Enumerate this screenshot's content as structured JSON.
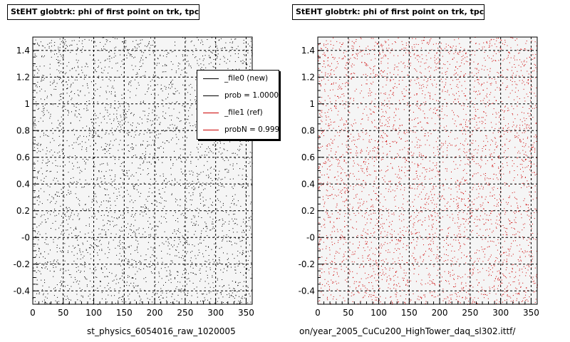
{
  "panels": [
    {
      "title": "StEHT globtrk: phi of first point on trk, tpc",
      "file_label": "st_physics_6054016_raw_1020005",
      "color": "#000000"
    },
    {
      "title": "StEHT globtrk: phi of first point on trk, tpc",
      "file_label": "on/year_2005_CuCu200_HighTower_daq_sl302.ittf/",
      "color": "#cc0000"
    }
  ],
  "legend": {
    "entries": [
      {
        "label": "_file0 (new)",
        "color": "#000000"
      },
      {
        "label": "prob = 1.000000",
        "color": "#000000"
      },
      {
        "label": "_file1 (ref)",
        "color": "#cc0000"
      },
      {
        "label": "probN = 0.999992",
        "color": "#cc0000"
      }
    ]
  },
  "chart_data": [
    {
      "type": "scatter",
      "title": "StEHT globtrk: phi of first point on trk, tpc",
      "xlabel": "st_physics_6054016_raw_1020005",
      "xlim": [
        0,
        360
      ],
      "ylim": [
        -0.5,
        1.5
      ],
      "x_ticks": [
        0,
        50,
        100,
        150,
        200,
        250,
        300,
        350
      ],
      "y_ticks": [
        -0.4,
        -0.2,
        0,
        0.2,
        0.4,
        0.6,
        0.8,
        1,
        1.2,
        1.4
      ],
      "y_tick_labels": [
        "-0.4",
        "-0.2",
        "-0",
        "0.2",
        "0.4",
        "0.6",
        "0.8",
        "1",
        "1.2",
        "1.4"
      ],
      "grid": true,
      "series_color": "#000000",
      "points": 3200,
      "distribution": "approximately uniform scatter across full x and y range"
    },
    {
      "type": "scatter",
      "title": "StEHT globtrk: phi of first point on trk, tpc",
      "xlabel": "on/year_2005_CuCu200_HighTower_daq_sl302.ittf/",
      "xlim": [
        0,
        360
      ],
      "ylim": [
        -0.5,
        1.5
      ],
      "x_ticks": [
        0,
        50,
        100,
        150,
        200,
        250,
        300,
        350
      ],
      "y_ticks": [
        -0.4,
        -0.2,
        0,
        0.2,
        0.4,
        0.6,
        0.8,
        1,
        1.2,
        1.4
      ],
      "y_tick_labels": [
        "-0.4",
        "-0.2",
        "-0",
        "0.2",
        "0.4",
        "0.6",
        "0.8",
        "1",
        "1.2",
        "1.4"
      ],
      "grid": true,
      "series_color": "#cc0000",
      "points": 3800,
      "distribution": "approximately uniform scatter across full x and y range"
    }
  ]
}
